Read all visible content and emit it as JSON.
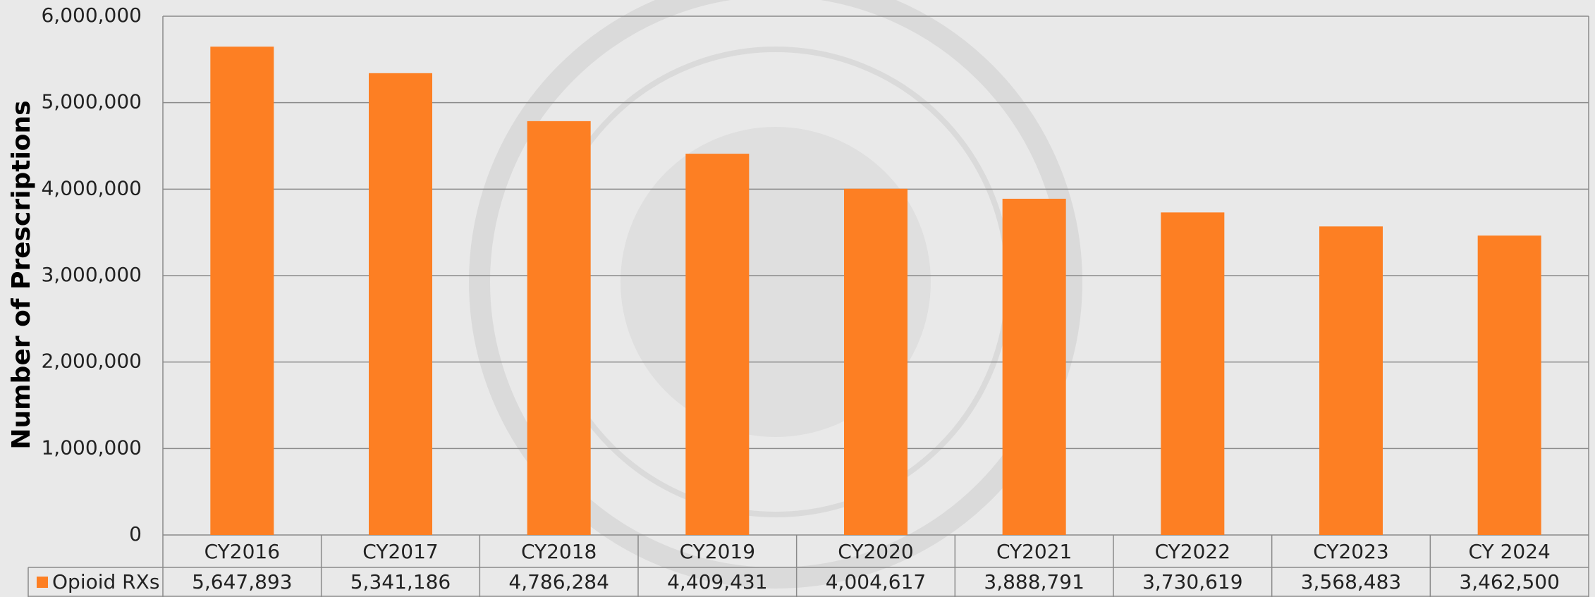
{
  "chart_data": {
    "type": "bar",
    "y_label": "Number of Prescriptions",
    "categories": [
      "CY2016",
      "CY2017",
      "CY2018",
      "CY2019",
      "CY2020",
      "CY2021",
      "CY2022",
      "CY2023",
      "CY 2024"
    ],
    "series": [
      {
        "name": "Opioid RXs",
        "color": "#fd7f23",
        "values": [
          5647893,
          5341186,
          4786284,
          4409431,
          4004617,
          3888791,
          3730619,
          3568483,
          3462500
        ],
        "value_labels": [
          "5,647,893",
          "5,341,186",
          "4,786,284",
          "4,409,431",
          "4,004,617",
          "3,888,791",
          "3,730,619",
          "3,568,483",
          "3,462,500"
        ]
      }
    ],
    "ylim": [
      0,
      6000000
    ],
    "yticks": [
      0,
      {
        "value": 1000000,
        "label": "1,000,000"
      },
      {
        "value": 2000000,
        "label": "2,000,000"
      },
      {
        "value": 3000000,
        "label": "3,000,000"
      },
      {
        "value": 4000000,
        "label": "4,000,000"
      },
      {
        "value": 5000000,
        "label": "5,000,000"
      },
      {
        "value": 6000000,
        "label": "6,000,000"
      }
    ],
    "grid": true
  }
}
